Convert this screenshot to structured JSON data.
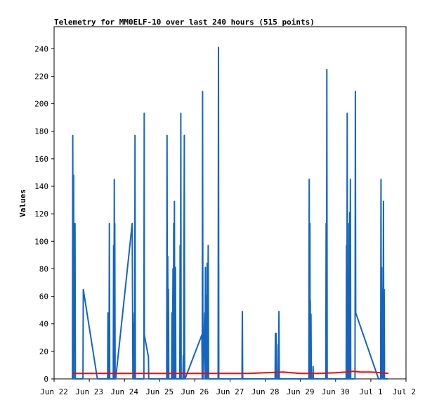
{
  "chart_data": {
    "type": "line",
    "title": "Telemetry for MM0ELF-10 over last 240 hours (515 points)",
    "xlabel": "",
    "ylabel": "Values",
    "x_ticks": [
      "Jun 22",
      "Jun 23",
      "Jun 24",
      "Jun 25",
      "Jun 26",
      "Jun 27",
      "Jun 28",
      "Jun 29",
      "Jun 30",
      "Jul 1",
      "Jul 2"
    ],
    "y_ticks": [
      0,
      20,
      40,
      60,
      80,
      100,
      120,
      140,
      160,
      180,
      200,
      220,
      240
    ],
    "xlim_days": [
      0,
      10
    ],
    "ylim": [
      0,
      256
    ],
    "grid": false,
    "legend": "none",
    "series": [
      {
        "color": "#1565c0",
        "points": [
          [
            0.52,
            0
          ],
          [
            0.53,
            177
          ],
          [
            0.54,
            0
          ],
          [
            0.555,
            148
          ],
          [
            0.565,
            30
          ],
          [
            0.575,
            88
          ],
          [
            0.585,
            0
          ],
          [
            0.595,
            113
          ],
          [
            0.605,
            0
          ],
          [
            0.63,
            0
          ],
          [
            0.82,
            0
          ],
          [
            0.83,
            65
          ],
          [
            1.23,
            0
          ],
          [
            1.25,
            0
          ],
          [
            1.52,
            0
          ],
          [
            1.53,
            48
          ],
          [
            1.54,
            0
          ],
          [
            1.56,
            0
          ],
          [
            1.57,
            113
          ],
          [
            1.58,
            0
          ],
          [
            1.6,
            0
          ],
          [
            1.68,
            0
          ],
          [
            1.69,
            97
          ],
          [
            1.7,
            0
          ],
          [
            1.71,
            145
          ],
          [
            1.72,
            0
          ],
          [
            1.725,
            113
          ],
          [
            1.735,
            0
          ],
          [
            1.75,
            0
          ],
          [
            2.22,
            113
          ],
          [
            2.23,
            57
          ],
          [
            2.24,
            0
          ],
          [
            2.25,
            40
          ],
          [
            2.26,
            0
          ],
          [
            2.28,
            48
          ],
          [
            2.29,
            0
          ],
          [
            2.3,
            177
          ],
          [
            2.31,
            0
          ],
          [
            2.33,
            0
          ],
          [
            2.55,
            0
          ],
          [
            2.56,
            193
          ],
          [
            2.565,
            32
          ],
          [
            2.68,
            16
          ],
          [
            2.69,
            0
          ],
          [
            2.72,
            0
          ],
          [
            3.2,
            0
          ],
          [
            3.21,
            177
          ],
          [
            3.22,
            0
          ],
          [
            3.23,
            89
          ],
          [
            3.24,
            0
          ],
          [
            3.25,
            65
          ],
          [
            3.26,
            0
          ],
          [
            3.34,
            0
          ],
          [
            3.35,
            48
          ],
          [
            3.36,
            0
          ],
          [
            3.38,
            80
          ],
          [
            3.39,
            0
          ],
          [
            3.4,
            113
          ],
          [
            3.41,
            0
          ],
          [
            3.42,
            129
          ],
          [
            3.43,
            0
          ],
          [
            3.45,
            81
          ],
          [
            3.46,
            0
          ],
          [
            3.57,
            0
          ],
          [
            3.58,
            97
          ],
          [
            3.59,
            0
          ],
          [
            3.6,
            193
          ],
          [
            3.61,
            0
          ],
          [
            3.64,
            0
          ],
          [
            3.66,
            0
          ],
          [
            3.67,
            17
          ],
          [
            3.68,
            0
          ],
          [
            3.7,
            177
          ],
          [
            3.71,
            0
          ],
          [
            3.72,
            0
          ],
          [
            4.2,
            32
          ],
          [
            4.21,
            0
          ],
          [
            4.22,
            209
          ],
          [
            4.23,
            0
          ],
          [
            4.28,
            48
          ],
          [
            4.29,
            0
          ],
          [
            4.3,
            81
          ],
          [
            4.31,
            0
          ],
          [
            4.33,
            61
          ],
          [
            4.34,
            0
          ],
          [
            4.35,
            84
          ],
          [
            4.36,
            0
          ],
          [
            4.38,
            97
          ],
          [
            4.39,
            0
          ],
          [
            4.66,
            0
          ],
          [
            4.67,
            241
          ],
          [
            4.68,
            0
          ],
          [
            5.34,
            0
          ],
          [
            5.35,
            49
          ],
          [
            5.36,
            0
          ],
          [
            6.28,
            0
          ],
          [
            6.29,
            33
          ],
          [
            6.3,
            0
          ],
          [
            6.31,
            33
          ],
          [
            6.32,
            0
          ],
          [
            6.36,
            0
          ],
          [
            6.37,
            25
          ],
          [
            6.38,
            0
          ],
          [
            6.39,
            49
          ],
          [
            6.4,
            0
          ],
          [
            7.24,
            0
          ],
          [
            7.25,
            145
          ],
          [
            7.26,
            0
          ],
          [
            7.27,
            113
          ],
          [
            7.275,
            0
          ],
          [
            7.28,
            57
          ],
          [
            7.29,
            0
          ],
          [
            7.3,
            47
          ],
          [
            7.31,
            0
          ],
          [
            7.35,
            0
          ],
          [
            7.36,
            9
          ],
          [
            7.37,
            0
          ],
          [
            7.72,
            0
          ],
          [
            7.73,
            113
          ],
          [
            7.74,
            0
          ],
          [
            7.75,
            225
          ],
          [
            7.76,
            0
          ],
          [
            8.3,
            0
          ],
          [
            8.31,
            97
          ],
          [
            8.32,
            0
          ],
          [
            8.33,
            193
          ],
          [
            8.34,
            0
          ],
          [
            8.36,
            57
          ],
          [
            8.37,
            0
          ],
          [
            8.38,
            113
          ],
          [
            8.39,
            0
          ],
          [
            8.4,
            121
          ],
          [
            8.41,
            0
          ],
          [
            8.42,
            145
          ],
          [
            8.43,
            0
          ],
          [
            8.55,
            0
          ],
          [
            8.56,
            209
          ],
          [
            8.57,
            48
          ],
          [
            9.22,
            0
          ],
          [
            9.24,
            0
          ],
          [
            9.28,
            0
          ],
          [
            9.29,
            145
          ],
          [
            9.3,
            0
          ],
          [
            9.31,
            81
          ],
          [
            9.32,
            0
          ],
          [
            9.34,
            65
          ],
          [
            9.35,
            0
          ],
          [
            9.36,
            129
          ],
          [
            9.37,
            0
          ],
          [
            9.38,
            65
          ],
          [
            9.39,
            0
          ],
          [
            9.48,
            0
          ]
        ]
      },
      {
        "color": "#ff0000",
        "points": [
          [
            0.53,
            4
          ],
          [
            1.0,
            4
          ],
          [
            2.0,
            4
          ],
          [
            3.0,
            4
          ],
          [
            4.0,
            4
          ],
          [
            5.0,
            4
          ],
          [
            5.5,
            4
          ],
          [
            6.0,
            4.5
          ],
          [
            6.5,
            5
          ],
          [
            7.0,
            4
          ],
          [
            7.5,
            4
          ],
          [
            8.0,
            4.5
          ],
          [
            8.3,
            5
          ],
          [
            8.5,
            5.5
          ],
          [
            8.7,
            5
          ],
          [
            9.0,
            5
          ],
          [
            9.3,
            4.5
          ],
          [
            9.5,
            4
          ]
        ]
      }
    ]
  }
}
